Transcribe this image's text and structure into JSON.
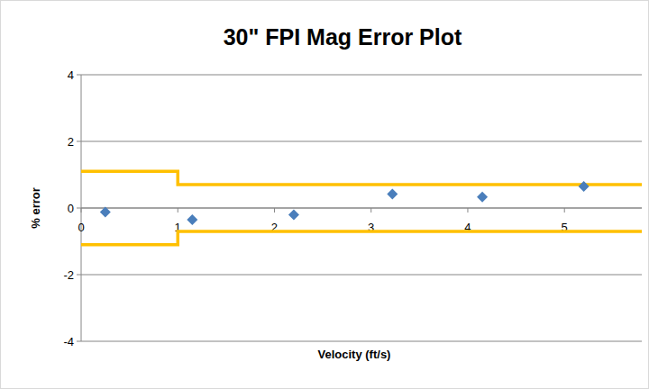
{
  "chart_data": {
    "type": "scatter",
    "title": "30\" FPI Mag Error Plot",
    "x_label": "Velocity (ft/s)",
    "y_label": "% error",
    "xlim": [
      0,
      5.8
    ],
    "ylim": [
      -4,
      4
    ],
    "xticks": [
      0,
      1,
      2,
      3,
      4,
      5
    ],
    "yticks": [
      -4,
      -2,
      0,
      2,
      4
    ],
    "grid": "y",
    "series": [
      {
        "type": "scatter",
        "marker": "diamond",
        "color": "#4a7ebb",
        "x": [
          0.25,
          1.15,
          2.2,
          3.22,
          4.15,
          5.2
        ],
        "values": [
          -0.12,
          -0.35,
          -0.2,
          0.42,
          0.33,
          0.65
        ]
      },
      {
        "type": "line",
        "line_style": "solid",
        "color": "#ffc000",
        "x": [
          0,
          1,
          1,
          5.8
        ],
        "values": [
          1.1,
          1.1,
          0.7,
          0.7
        ]
      },
      {
        "type": "line",
        "line_style": "solid",
        "color": "#ffc000",
        "x": [
          0,
          1,
          1,
          5.8
        ],
        "values": [
          -1.1,
          -1.1,
          -0.7,
          -0.7
        ]
      }
    ]
  }
}
